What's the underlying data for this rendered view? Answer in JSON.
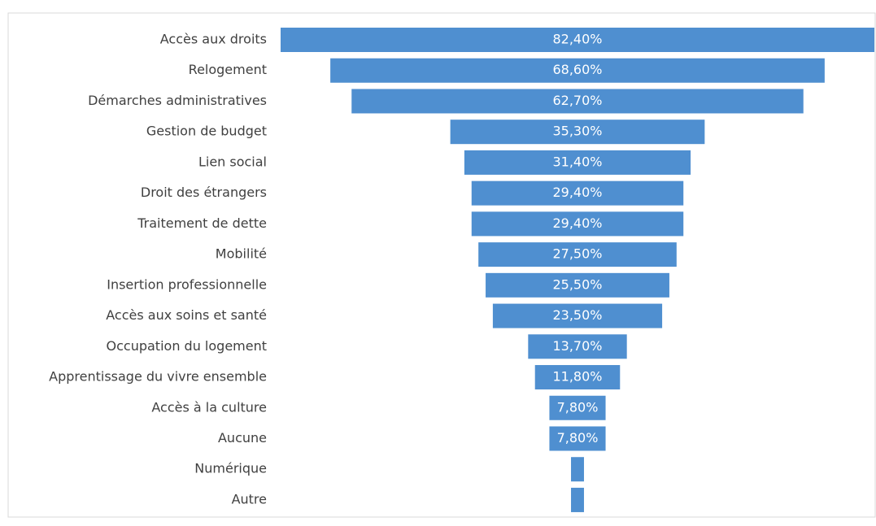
{
  "chart_data": {
    "type": "funnel",
    "categories": [
      "Accès aux droits",
      "Relogement",
      "Démarches administratives",
      "Gestion de budget",
      "Lien social",
      "Droit des étrangers",
      "Traitement de dette",
      "Mobilité",
      "Insertion professionnelle",
      "Accès aux soins et santé",
      "Occupation du logement",
      "Apprentissage du vivre ensemble",
      "Accès à la culture",
      "Aucune",
      "Numérique",
      "Autre"
    ],
    "values": [
      82.4,
      68.6,
      62.7,
      35.3,
      31.4,
      29.4,
      29.4,
      27.5,
      25.5,
      23.5,
      13.7,
      11.8,
      7.8,
      7.8,
      1.8,
      1.8
    ],
    "value_labels": [
      "82,40%",
      "68,60%",
      "62,70%",
      "35,30%",
      "31,40%",
      "29,40%",
      "29,40%",
      "27,50%",
      "25,50%",
      "23,50%",
      "13,70%",
      "11,80%",
      "7,80%",
      "7,80%",
      null,
      null
    ],
    "color": "#4f8fd0"
  }
}
